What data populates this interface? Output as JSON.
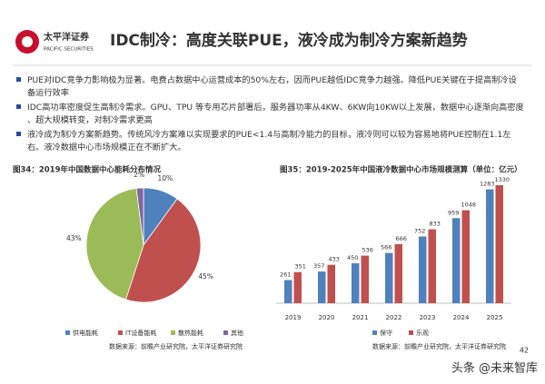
{
  "logo": {
    "name": "太平洋证券",
    "subname": "PACIFIC SECURITIES"
  },
  "header": {
    "title": "IDC制冷：高度关联PUE，液冷成为制冷方案新趋势"
  },
  "bullets": [
    "PUE对IDC竞争力影响极为显著。电费占数据中心运营成本的50%左右，因而PUE越低IDC竞争力越强。降低PUE关键在于提高制冷设备运行效率",
    "IDC高功率密度促生高制冷需求。GPU、TPU 等专用芯片部署后，服务器功率从4KW、6KW向10KW以上发展，数据中心逐渐向高密度、超大规模转变，对制冷需求更高",
    "液冷成为制冷方案新趋势。传统风冷方案难以实现要求的PUE<1.4与高制冷能力的目标，液冷则可以较为容易地将PUE控制在1.1左右。液冷数据中心市场规模正在不断扩大。"
  ],
  "chart_data": [
    {
      "type": "pie",
      "title": "图34：2019年中国数据中心能耗分布情况",
      "categories": [
        "供电能耗",
        "IT设备能耗",
        "散热能耗",
        "其他"
      ],
      "values": [
        10,
        45,
        43,
        2
      ],
      "value_labels": [
        "10%",
        "45%",
        "43%",
        "2%"
      ],
      "colors": [
        "#4f81bd",
        "#c0504d",
        "#9bbb59",
        "#8064a2"
      ],
      "source": "数据来源：前瞻产业研究院，太平洋证券研究院"
    },
    {
      "type": "bar",
      "title": "图35：2019-2025年中国液冷数据中心市场规模测算（单位：亿元）",
      "categories": [
        "2019",
        "2020",
        "2021",
        "2022",
        "2023",
        "2024",
        "2025"
      ],
      "series": [
        {
          "name": "保守",
          "color": "#4f81bd",
          "values": [
            261,
            357,
            450,
            566,
            752,
            959,
            1283
          ]
        },
        {
          "name": "乐观",
          "color": "#c0504d",
          "values": [
            351,
            433,
            536,
            666,
            833,
            1048,
            1330
          ]
        }
      ],
      "source": "数据来源：前瞻产业研究院，太平洋证券研究院"
    }
  ],
  "page_number": "42",
  "watermark": "头条 @未来智库"
}
